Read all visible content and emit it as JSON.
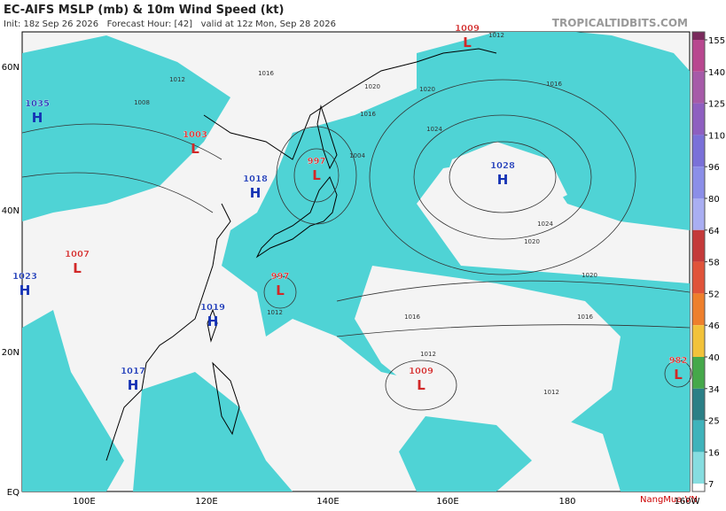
{
  "header": {
    "title": "EC-AIFS MSLP (mb) & 10m Wind Speed (kt)",
    "subtitle": "Init: 18z Sep 26 2026   Forecast Hour: [42]   valid at 12z Mon, Sep 28 2026",
    "source": "TROPICALTIDBITS.COM"
  },
  "map": {
    "lat_labels": [
      "60N",
      "40N",
      "20N",
      "EQ"
    ],
    "lon_labels": [
      "100E",
      "120E",
      "140E",
      "160E",
      "180",
      "160W"
    ],
    "centers": [
      {
        "pressure": "1035",
        "letter": "H"
      },
      {
        "pressure": "1003",
        "letter": "L"
      },
      {
        "pressure": "1018",
        "letter": "H"
      },
      {
        "pressure": "997",
        "letter": "L"
      },
      {
        "pressure": "1009",
        "letter": "L"
      },
      {
        "pressure": "1028",
        "letter": "H"
      },
      {
        "pressure": "1007",
        "letter": "L"
      },
      {
        "pressure": "1023",
        "letter": "H"
      },
      {
        "pressure": "997",
        "letter": "L"
      },
      {
        "pressure": "1019",
        "letter": "H"
      },
      {
        "pressure": "1017",
        "letter": "H"
      },
      {
        "pressure": "1009",
        "letter": "L"
      },
      {
        "pressure": "982",
        "letter": "L"
      }
    ],
    "isobar_labels": [
      "1012",
      "1016",
      "1020",
      "1024",
      "1016",
      "1020",
      "1012",
      "1008",
      "1004",
      "1016",
      "1020",
      "1024",
      "1020",
      "1016",
      "1012",
      "1016",
      "1012",
      "1012"
    ]
  },
  "colorbar": {
    "ticks": [
      155,
      140,
      125,
      110,
      96,
      80,
      64,
      58,
      52,
      46,
      40,
      34,
      25,
      16,
      7
    ],
    "colors": [
      "#7a2a5c",
      "#b8478f",
      "#a65aa8",
      "#8e5fc0",
      "#7a70d8",
      "#8b8ee8",
      "#a9aef2",
      "#c43a3a",
      "#e0533a",
      "#ee7f2c",
      "#f2c23a",
      "#45a84a",
      "#2b7f86",
      "#3fb3bb",
      "#86dde0",
      "#ffffff"
    ]
  },
  "watermark": "NangMua.VN"
}
